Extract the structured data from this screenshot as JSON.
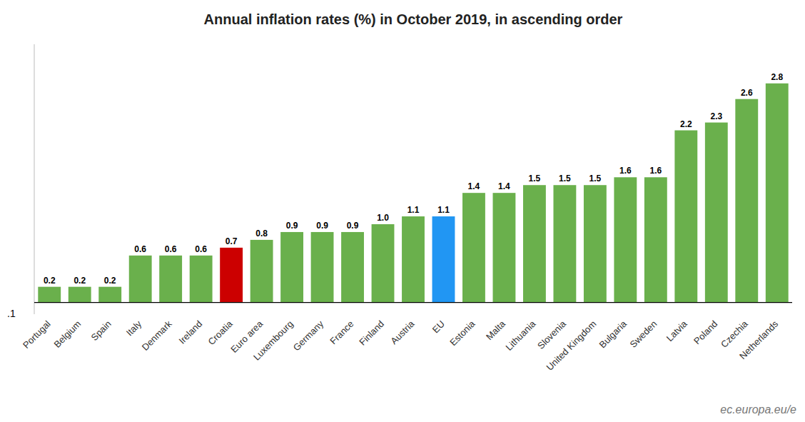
{
  "chart_data": {
    "type": "bar",
    "title": "Annual inflation rates (%)  in October 2019, in ascending order",
    "categories": [
      "Portugal",
      "Belgium",
      "Spain",
      "Italy",
      "Denmark",
      "Ireland",
      "Croatia",
      "Euro area",
      "Luxembourg",
      "Germany",
      "France",
      "Finland",
      "Austria",
      "EU",
      "Estonia",
      "Malta",
      "Lithuania",
      "Slovenia",
      "United Kingdom",
      "Bulgaria",
      "Sweden",
      "Latvia",
      "Poland",
      "Czechia",
      "Netherlands"
    ],
    "values": [
      0.2,
      0.2,
      0.2,
      0.6,
      0.6,
      0.6,
      0.7,
      0.8,
      0.9,
      0.9,
      0.9,
      1.0,
      1.1,
      1.1,
      1.4,
      1.4,
      1.5,
      1.5,
      1.5,
      1.6,
      1.6,
      2.2,
      2.3,
      2.6,
      2.8
    ],
    "value_labels": [
      "0.2",
      "0.2",
      "0.2",
      "0.6",
      "0.6",
      "0.6",
      "0.7",
      "0.8",
      "0.9",
      "0.9",
      "0.9",
      "1.0",
      "1.1",
      "1.1",
      "1.4",
      "1.4",
      "1.5",
      "1.5",
      "1.5",
      "1.6",
      "1.6",
      "2.2",
      "2.3",
      "2.6",
      "2.8"
    ],
    "data_labels": true,
    "colors": [
      "#6ab04c",
      "#6ab04c",
      "#6ab04c",
      "#6ab04c",
      "#6ab04c",
      "#6ab04c",
      "#cc0000",
      "#6ab04c",
      "#6ab04c",
      "#6ab04c",
      "#6ab04c",
      "#6ab04c",
      "#6ab04c",
      "#2196f3",
      "#6ab04c",
      "#6ab04c",
      "#6ab04c",
      "#6ab04c",
      "#6ab04c",
      "#6ab04c",
      "#6ab04c",
      "#6ab04c",
      "#6ab04c",
      "#6ab04c",
      "#6ab04c"
    ],
    "ylim": [
      -0.15,
      3.3
    ],
    "yticks": [],
    "tick_labels": "x",
    "grid": false,
    "annotations": [
      ".1",
      "ec.europa.eu/e"
    ]
  }
}
